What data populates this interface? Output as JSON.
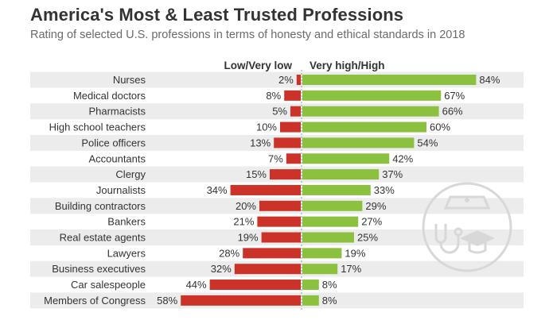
{
  "title": "America's Most & Least Trusted Professions",
  "subtitle": "Rating of selected U.S. professions in terms of honesty and ethical standards in 2018",
  "colors": {
    "low": "#cc3328",
    "high": "#8cc140",
    "stripe": "#ececec",
    "divider": "#999999",
    "watermark": "#d8d8d8"
  },
  "icon": "medical-professions-icon",
  "chart_data": {
    "type": "bar",
    "orientation": "horizontal-diverging",
    "categories": [
      "Nurses",
      "Medical doctors",
      "Pharmacists",
      "High school teachers",
      "Police officers",
      "Accountants",
      "Clergy",
      "Journalists",
      "Building contractors",
      "Bankers",
      "Real estate agents",
      "Lawyers",
      "Business executives",
      "Car salespeople",
      "Members of Congress"
    ],
    "series": [
      {
        "name": "Low/Very low",
        "values": [
          2,
          8,
          5,
          10,
          13,
          7,
          15,
          34,
          20,
          21,
          19,
          28,
          32,
          44,
          58
        ],
        "labels": [
          "2%",
          "8%",
          "5%",
          "10%",
          "13%",
          "7%",
          "15%",
          "34%",
          "20%",
          "21%",
          "19%",
          "28%",
          "32%",
          "44%",
          "58%"
        ]
      },
      {
        "name": "Very high/High",
        "values": [
          84,
          67,
          66,
          60,
          54,
          42,
          37,
          33,
          29,
          27,
          25,
          19,
          17,
          8,
          8
        ],
        "labels": [
          "84%",
          "67%",
          "66%",
          "60%",
          "54%",
          "42%",
          "37%",
          "33%",
          "29%",
          "27%",
          "25%",
          "19%",
          "17%",
          "8%",
          "8%"
        ]
      }
    ],
    "unit": "%",
    "xlim": [
      0,
      100
    ]
  }
}
